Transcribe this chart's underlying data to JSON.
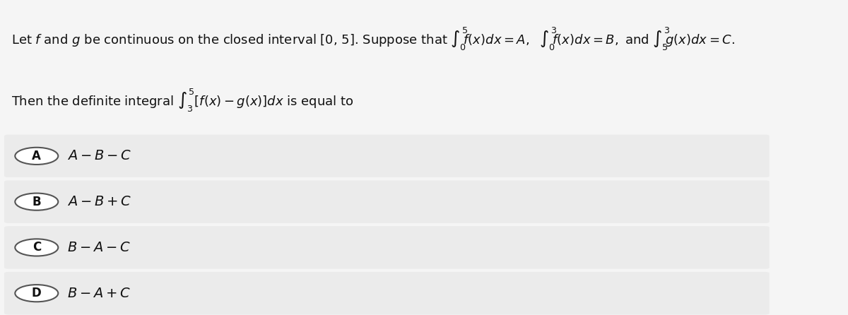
{
  "background_color": "#f5f5f5",
  "white_bg": "#ffffff",
  "question_line1": "Let $f$ and $g$ be continuous on the closed interval [0, 5]. Suppose that $\\int_0^5 f(x)dx = A,$  $\\int_0^3 f(x)dx = B,$ and $\\int_5^3 g(x)dx = C.$",
  "question_line2": "Then the definite integral $\\int_3^5 [f(x) - g(x)]dx$ is equal to",
  "options": [
    {
      "label": "A",
      "text": "$A - B - C$"
    },
    {
      "label": "B",
      "text": "$A - B + C$"
    },
    {
      "label": "C",
      "text": "$B - A - C$"
    },
    {
      "label": "D",
      "text": "$B - A + C$"
    }
  ],
  "option_bg": "#ebebeb",
  "separator_color": "#cccccc",
  "circle_color": "#555555",
  "text_color": "#111111",
  "font_size_question": 13,
  "font_size_options": 14
}
